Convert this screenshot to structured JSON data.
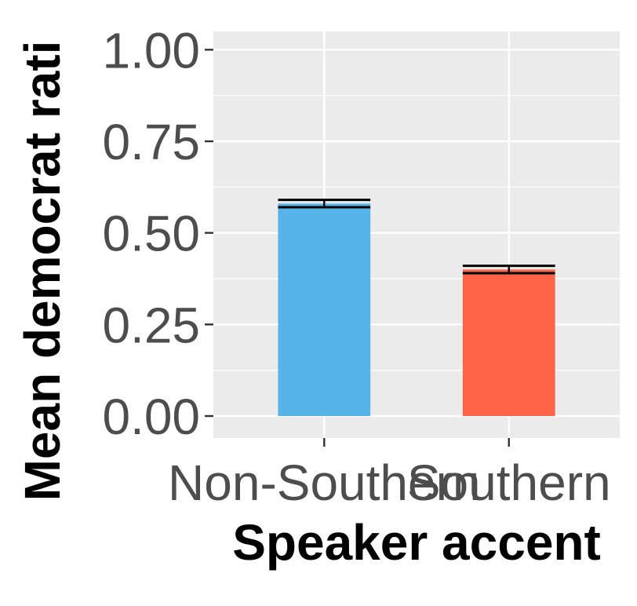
{
  "chart_data": {
    "type": "bar",
    "title": "",
    "xlabel": "Speaker accent",
    "ylabel": "Mean democrat rati",
    "categories": [
      "Non-Southern",
      "Southern"
    ],
    "values": [
      0.58,
      0.4
    ],
    "error": [
      0.01,
      0.01
    ],
    "colors": [
      "#56B4E9",
      "#FF6347"
    ],
    "ylim": [
      -0.06,
      1.05
    ],
    "yticks": [
      0.0,
      0.25,
      0.5,
      0.75,
      1.0
    ],
    "ytick_labels": [
      "0.00",
      "0.25",
      "0.50",
      "0.75",
      "1.00"
    ],
    "grid": true,
    "panel_bg": "#EBEBEB",
    "grid_color": "#FFFFFF",
    "legend": "none"
  }
}
